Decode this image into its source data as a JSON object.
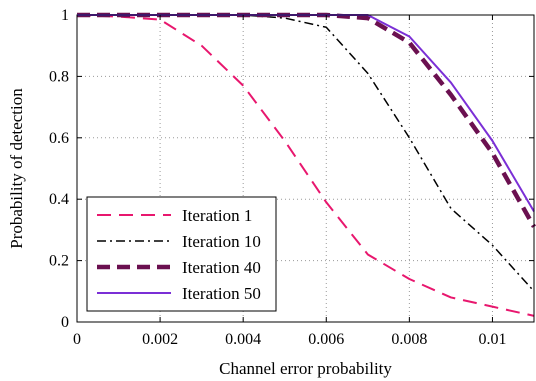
{
  "chart_data": {
    "type": "line",
    "title": "",
    "xlabel": "Channel error probability",
    "ylabel": "Probability of detection",
    "xlim": [
      0,
      0.011
    ],
    "ylim": [
      0,
      1
    ],
    "xticks": [
      0,
      0.002,
      0.004,
      0.006,
      0.008,
      0.01
    ],
    "xtick_labels": [
      "0",
      "0.002",
      "0.004",
      "0.006",
      "0.008",
      "0.01"
    ],
    "yticks": [
      0,
      0.2,
      0.4,
      0.6,
      0.8,
      1
    ],
    "ytick_labels": [
      "0",
      "0.2",
      "0.4",
      "0.6",
      "0.8",
      "1"
    ],
    "grid": true,
    "legend_position": "bottom-left",
    "series": [
      {
        "name": "Iteration 1",
        "color": "#e8176e",
        "dash": "dashed",
        "width": 2,
        "x": [
          0,
          0.001,
          0.002,
          0.003,
          0.004,
          0.005,
          0.006,
          0.007,
          0.008,
          0.009,
          0.01,
          0.011
        ],
        "y": [
          1,
          0.995,
          0.985,
          0.9,
          0.77,
          0.59,
          0.39,
          0.22,
          0.14,
          0.08,
          0.05,
          0.02
        ]
      },
      {
        "name": "Iteration 10",
        "color": "#000000",
        "dash": "dashdot",
        "width": 1.5,
        "x": [
          0,
          0.001,
          0.002,
          0.003,
          0.004,
          0.005,
          0.006,
          0.007,
          0.008,
          0.009,
          0.01,
          0.011
        ],
        "y": [
          1,
          1,
          1,
          1,
          1,
          0.99,
          0.96,
          0.81,
          0.6,
          0.37,
          0.25,
          0.1
        ]
      },
      {
        "name": "Iteration 40",
        "color": "#6b1050",
        "dash": "bold-dashed",
        "width": 4.5,
        "x": [
          0,
          0.001,
          0.002,
          0.003,
          0.004,
          0.005,
          0.006,
          0.007,
          0.008,
          0.009,
          0.01,
          0.011
        ],
        "y": [
          1,
          1,
          1,
          1,
          1,
          1,
          1,
          0.99,
          0.91,
          0.74,
          0.55,
          0.31
        ]
      },
      {
        "name": "Iteration 50",
        "color": "#7b2fd6",
        "dash": "solid",
        "width": 2,
        "x": [
          0,
          0.001,
          0.002,
          0.003,
          0.004,
          0.005,
          0.006,
          0.007,
          0.008,
          0.009,
          0.01,
          0.011
        ],
        "y": [
          1,
          1,
          1,
          1,
          1,
          1,
          1,
          1,
          0.93,
          0.78,
          0.59,
          0.36
        ]
      }
    ]
  }
}
